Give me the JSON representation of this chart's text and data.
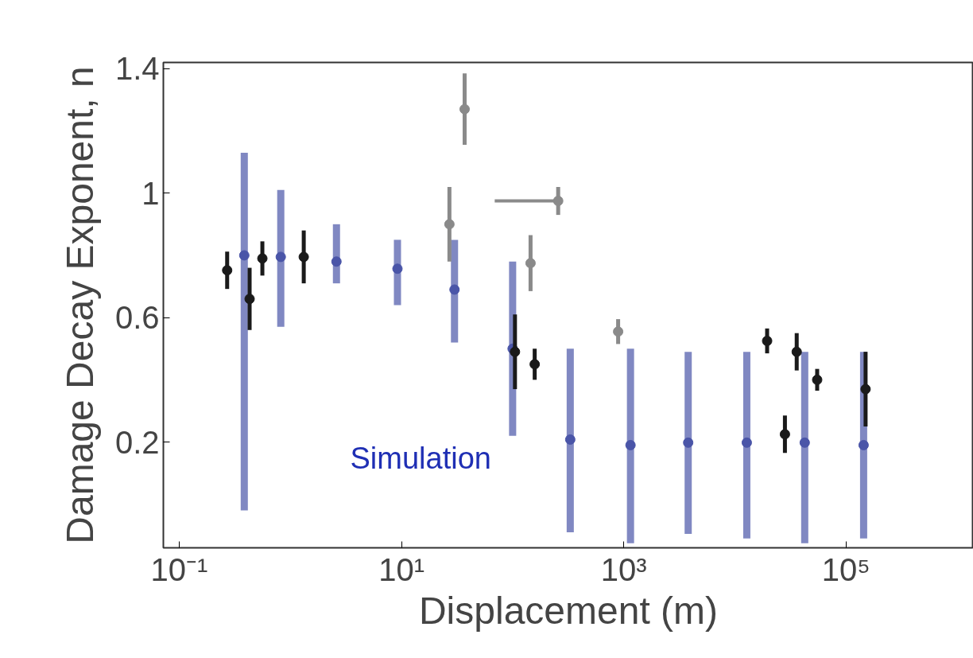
{
  "chart_data": {
    "type": "scatter",
    "xlabel": "Displacement (m)",
    "ylabel": "Damage Decay Exponent, n",
    "log": "x",
    "grid": false,
    "legend": "bottom left",
    "marker": "circle",
    "xlim": [
      0.072,
      1400000
    ],
    "ylim": [
      -0.14,
      1.42
    ],
    "xticks": [
      {
        "value": 0.1,
        "label": "10⁻¹"
      },
      {
        "value": 10,
        "label": "10¹"
      },
      {
        "value": 1000,
        "label": "10³"
      },
      {
        "value": 100000,
        "label": "10⁵"
      }
    ],
    "yticks": [
      1.4,
      1,
      0.6,
      0.2
    ],
    "series": [
      {
        "name": "Simulation",
        "color": "#4a55a8",
        "x": [
          0.385,
          0.82,
          2.6,
          9.2,
          30,
          100,
          330,
          1150,
          3800,
          12800,
          42500,
          144000
        ],
        "values": [
          0.8,
          0.795,
          0.78,
          0.757,
          0.69,
          0.5,
          0.208,
          0.19,
          0.198,
          0.198,
          0.198,
          0.19
        ],
        "errors": [
          [
            -0.02,
            1.13
          ],
          [
            0.57,
            1.01
          ],
          [
            0.71,
            0.9
          ],
          [
            0.64,
            0.85
          ],
          [
            0.52,
            0.85
          ],
          [
            0.22,
            0.78
          ],
          [
            -0.09,
            0.5
          ],
          [
            -0.125,
            0.5
          ],
          [
            -0.095,
            0.49
          ],
          [
            -0.11,
            0.49
          ],
          [
            -0.125,
            0.49
          ],
          [
            -0.11,
            0.49
          ]
        ]
      },
      {
        "color": "#1a1a1a",
        "x": [
          0.27,
          0.43,
          0.56,
          1.32,
          105,
          158,
          19500,
          28200,
          36000,
          55000,
          150000
        ],
        "values": [
          0.752,
          0.66,
          0.79,
          0.795,
          0.49,
          0.45,
          0.525,
          0.225,
          0.49,
          0.4,
          0.37
        ],
        "errors": [
          0.06,
          0.1,
          0.055,
          0.085,
          0.12,
          0.05,
          0.04,
          0.06,
          0.06,
          0.035,
          0.12
        ]
      },
      {
        "color": "#8a8a8a",
        "x": [
          37,
          27,
          145,
          257,
          890
        ],
        "values": [
          1.27,
          0.9,
          0.775,
          0.975,
          0.555
        ],
        "errors": [
          0.115,
          0.12,
          0.09,
          0.045,
          0.04
        ],
        "xerrors": [
          null,
          null,
          null,
          [
            69,
            257
          ],
          null
        ]
      }
    ]
  }
}
